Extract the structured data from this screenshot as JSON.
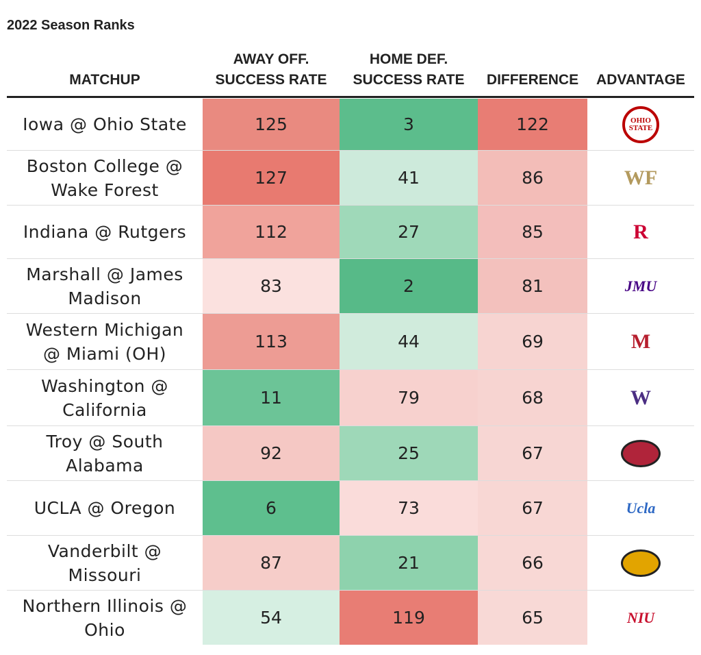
{
  "header": {
    "title": "2022 Season Ranks"
  },
  "table": {
    "columns": [
      [
        "MATCHUP"
      ],
      [
        "AWAY OFF.",
        "SUCCESS RATE"
      ],
      [
        "HOME DEF.",
        "SUCCESS RATE"
      ],
      [
        "DIFFERENCE"
      ],
      [
        "ADVANTAGE"
      ]
    ],
    "rows": [
      {
        "matchup": [
          "Iowa @ Ohio State"
        ],
        "cells": [
          125,
          3,
          122
        ],
        "colors": [
          "#e98a80",
          "#5cbd8c",
          "#e87d74"
        ],
        "logo": {
          "text": "OHIO STATE",
          "color": "#bb0000"
        }
      },
      {
        "matchup": [
          "Boston College @",
          "Wake Forest"
        ],
        "cells": [
          127,
          41,
          86
        ],
        "colors": [
          "#e87a70",
          "#cdeadb",
          "#f3bdb8"
        ],
        "logo": {
          "text": "WF",
          "color": "#b39a5e"
        }
      },
      {
        "matchup": [
          "Indiana @ Rutgers"
        ],
        "cells": [
          112,
          27,
          85
        ],
        "colors": [
          "#f0a39b",
          "#9fd9b9",
          "#f3bebb"
        ],
        "logo": {
          "text": "R",
          "color": "#cc0033"
        }
      },
      {
        "matchup": [
          "Marshall @ James",
          "Madison"
        ],
        "cells": [
          83,
          2,
          81
        ],
        "colors": [
          "#fbe1df",
          "#57ba88",
          "#f3c1bd"
        ],
        "logo": {
          "text": "JMU",
          "color": "#450084"
        }
      },
      {
        "matchup": [
          "Western Michigan",
          "@ Miami (OH)"
        ],
        "cells": [
          113,
          44,
          69
        ],
        "colors": [
          "#ed9c94",
          "#d0ebdc",
          "#f7d4d1"
        ],
        "logo": {
          "text": "M",
          "color": "#b61e2e"
        }
      },
      {
        "matchup": [
          "Washington @",
          "California"
        ],
        "cells": [
          11,
          79,
          68
        ],
        "colors": [
          "#6cc497",
          "#f7d1ce",
          "#f7d4d1"
        ],
        "logo": {
          "text": "W",
          "color": "#4b2e83"
        }
      },
      {
        "matchup": [
          "Troy @ South",
          "Alabama"
        ],
        "cells": [
          92,
          25,
          67
        ],
        "colors": [
          "#f5c8c4",
          "#9ed8b8",
          "#f7d6d3"
        ],
        "logo": {
          "color": "#b0243a"
        }
      },
      {
        "matchup": [
          "UCLA @ Oregon"
        ],
        "cells": [
          6,
          73,
          67
        ],
        "colors": [
          "#5ebf8e",
          "#fadcda",
          "#f8d7d4"
        ],
        "logo": {
          "text": "Ucla",
          "color": "#2d68c4"
        }
      },
      {
        "matchup": [
          "Vanderbilt @",
          "Missouri"
        ],
        "cells": [
          87,
          21,
          66
        ],
        "colors": [
          "#f6cdc9",
          "#8ed2ad",
          "#f8d8d5"
        ],
        "logo": {
          "color": "#e2a400"
        }
      },
      {
        "matchup": [
          "Northern Illinois @",
          "Ohio"
        ],
        "cells": [
          54,
          119,
          65
        ],
        "colors": [
          "#d6efe2",
          "#e87d74",
          "#f8d9d6"
        ],
        "logo": {
          "text": "NIU",
          "color": "#c8102e"
        }
      }
    ]
  }
}
